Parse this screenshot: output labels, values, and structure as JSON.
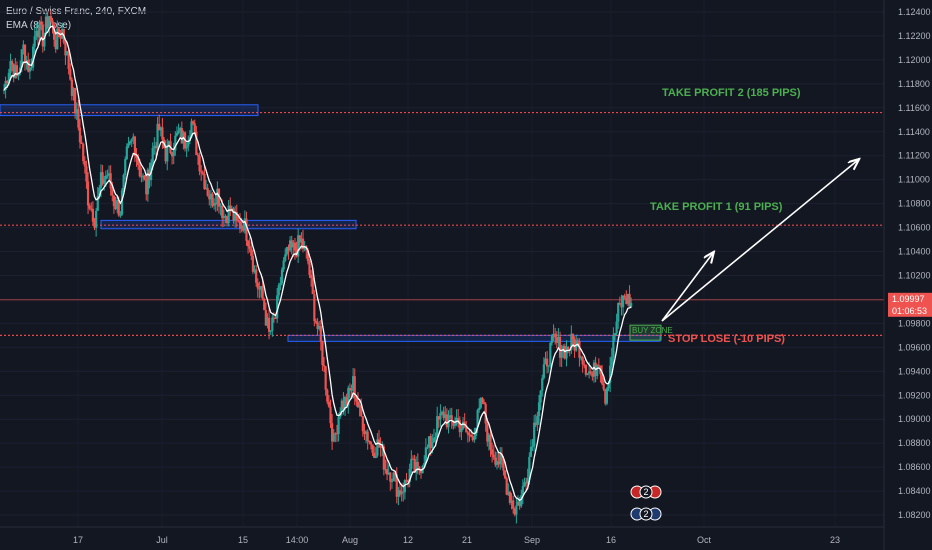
{
  "header": {
    "symbol_line": "Euro / Swiss Franc, 240, FXCM",
    "indicator_line": "EMA (8, close)"
  },
  "colors": {
    "background": "#131722",
    "bull": "#26a69a",
    "bear": "#ef5350",
    "ema": "#ffffff",
    "zone_border": "#2962ff",
    "resistance_line": "#e8484b",
    "tp_text": "#4caf50",
    "sl_text": "#ef5350",
    "price_label_bg": "#ef5350",
    "axis_text": "#b2b5be"
  },
  "chart_data": {
    "type": "candlestick",
    "symbol": "Euro / Swiss Franc",
    "timeframe": "240",
    "source": "FXCM",
    "ylim": [
      1.081,
      1.125
    ],
    "y_ticks": [
      "1.12400",
      "1.12200",
      "1.12000",
      "1.11800",
      "1.11600",
      "1.11400",
      "1.11200",
      "1.11000",
      "1.10800",
      "1.10600",
      "1.10400",
      "1.10200",
      "1.10000",
      "1.09800",
      "1.09600",
      "1.09400",
      "1.09200",
      "1.09000",
      "1.08800",
      "1.08600",
      "1.08400",
      "1.08200"
    ],
    "x_ticks": [
      "17",
      "Jul",
      "15",
      "14:00",
      "Aug",
      "12",
      "21",
      "Sep",
      "16",
      "Oct",
      "23"
    ],
    "close_path": [
      1.1175,
      1.12,
      1.1185,
      1.121,
      1.119,
      1.123,
      1.1218,
      1.1238,
      1.1215,
      1.1225,
      1.1195,
      1.116,
      1.1128,
      1.1085,
      1.1068,
      1.1098,
      1.1105,
      1.1082,
      1.1075,
      1.112,
      1.1135,
      1.1108,
      1.1092,
      1.1125,
      1.1142,
      1.1122,
      1.1128,
      1.1138,
      1.1132,
      1.1148,
      1.112,
      1.11,
      1.1083,
      1.109,
      1.107,
      1.1075,
      1.1062,
      1.1065,
      1.1048,
      1.1015,
      1.1,
      1.097,
      1.0985,
      1.1025,
      1.104,
      1.1042,
      1.1048,
      1.1032,
      1.099,
      1.0962,
      1.092,
      1.088,
      1.0912,
      1.0915,
      1.093,
      1.0905,
      1.089,
      1.0875,
      1.088,
      1.086,
      1.0855,
      1.084,
      1.0845,
      1.086,
      1.0855,
      1.087,
      1.088,
      1.0895,
      1.0905,
      1.0895,
      1.09,
      1.0892,
      1.0885,
      1.0895,
      1.0915,
      1.088,
      1.087,
      1.086,
      1.084,
      1.0825,
      1.0835,
      1.086,
      1.0895,
      1.0925,
      1.095,
      1.0965,
      1.096,
      1.0958,
      1.0965,
      1.096,
      1.0945,
      1.0935,
      1.0952,
      1.092,
      1.0955,
      1.099,
      1.1002,
      1.0997
    ],
    "ema_period": 8,
    "horizontal_lines": [
      {
        "label": "TAKE PROFIT 2 (185 PIPS)",
        "price": 1.1156
      },
      {
        "label": "TAKE PROFIT 1   (91 PIPS)",
        "price": 1.1062
      },
      {
        "label": "STOP LOSE (-10 PIPS)",
        "price": 1.097
      }
    ],
    "zones": [
      {
        "price_top": 1.11625,
        "price_bottom": 1.11535
      },
      {
        "price_top": 1.1066,
        "price_bottom": 1.1059
      },
      {
        "price_top": 1.097,
        "price_bottom": 1.0965
      },
      {
        "label": "BUY ZONE",
        "price_top": 1.09785,
        "price_bottom": 1.0966
      }
    ],
    "last_price": {
      "value": "1.09997",
      "countdown": "01:06:53"
    },
    "arrows": [
      {
        "from": [
          1.0972,
          "mid Sep"
        ],
        "to": [
          1.1029,
          "late Sep"
        ]
      },
      {
        "from": [
          1.0972,
          "mid Sep"
        ],
        "to": [
          1.1115,
          "Oct"
        ]
      }
    ],
    "badges": [
      {
        "text": "2"
      },
      {
        "text": "2"
      }
    ]
  }
}
